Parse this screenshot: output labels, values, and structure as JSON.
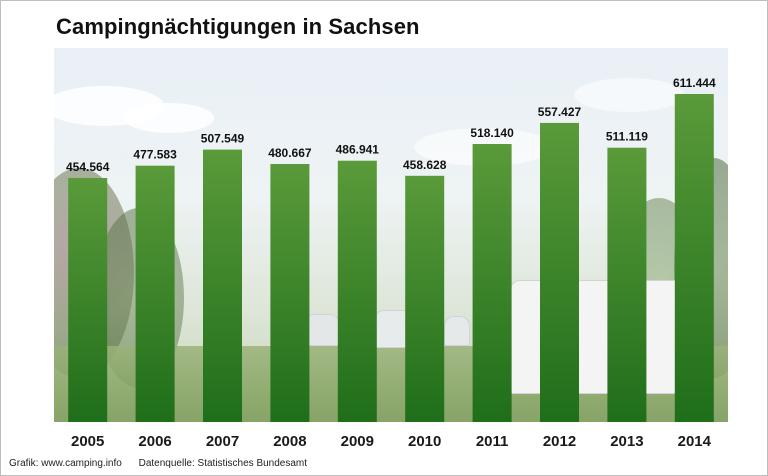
{
  "chart_data": {
    "type": "bar",
    "title": "Campingnächtigungen in Sachsen",
    "categories": [
      "2005",
      "2006",
      "2007",
      "2008",
      "2009",
      "2010",
      "2011",
      "2012",
      "2013",
      "2014"
    ],
    "values": [
      454564,
      477583,
      507549,
      480667,
      486941,
      458628,
      518140,
      557427,
      511119,
      611444
    ],
    "value_labels": [
      "454.564",
      "477.583",
      "507.549",
      "480.667",
      "486.941",
      "458.628",
      "518.140",
      "557.427",
      "511.119",
      "611.444"
    ],
    "xlabel": "",
    "ylabel": "",
    "ylim": [
      0,
      650000
    ],
    "grid": false,
    "legend": "none",
    "bar_color_top": "#5a9a3a",
    "bar_color_bottom": "#1f6e1a"
  },
  "footer": {
    "credit": "Grafik: www.camping.info",
    "source": "Datenquelle:  Statistisches Bundesamt"
  }
}
